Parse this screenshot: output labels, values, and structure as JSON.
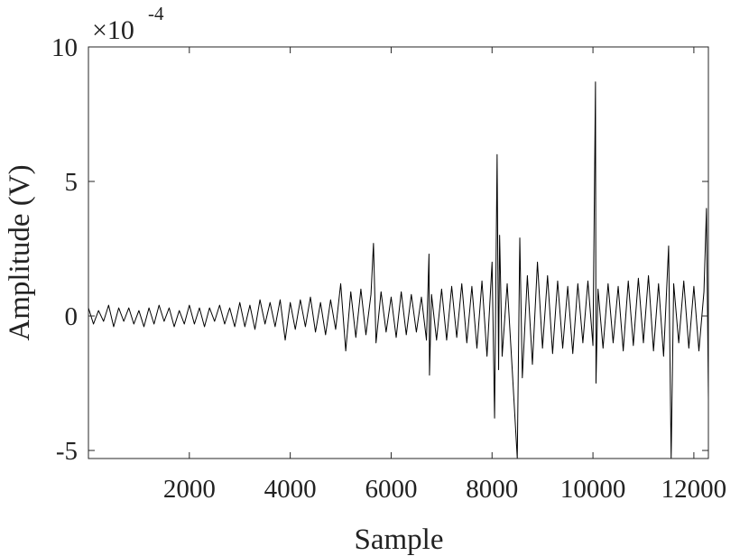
{
  "chart_data": {
    "type": "line",
    "xlabel": "Sample",
    "ylabel": "Amplitude (V)",
    "y_multiplier": "×10",
    "y_exponent": "-4",
    "color": "#000000",
    "xlim": [
      0,
      12288
    ],
    "xticks": [
      2000,
      4000,
      6000,
      8000,
      10000,
      12000
    ],
    "ylim": [
      -5.3,
      10
    ],
    "yticks": [
      -5,
      0,
      5,
      10
    ],
    "x": [
      0,
      100,
      200,
      300,
      400,
      500,
      600,
      700,
      800,
      900,
      1000,
      1100,
      1200,
      1300,
      1400,
      1500,
      1600,
      1700,
      1800,
      1900,
      2000,
      2100,
      2200,
      2300,
      2400,
      2500,
      2600,
      2700,
      2800,
      2900,
      3000,
      3100,
      3200,
      3300,
      3400,
      3500,
      3600,
      3700,
      3800,
      3900,
      4000,
      4100,
      4200,
      4300,
      4400,
      4500,
      4600,
      4700,
      4800,
      4900,
      5000,
      5100,
      5200,
      5300,
      5400,
      5500,
      5600,
      5650,
      5700,
      5800,
      5900,
      6000,
      6100,
      6200,
      6300,
      6400,
      6500,
      6600,
      6700,
      6750,
      6760,
      6800,
      6900,
      7000,
      7100,
      7200,
      7300,
      7400,
      7500,
      7600,
      7700,
      7800,
      7900,
      8000,
      8050,
      8100,
      8130,
      8150,
      8200,
      8300,
      8400,
      8500,
      8550,
      8600,
      8700,
      8800,
      8900,
      9000,
      9100,
      9200,
      9300,
      9400,
      9500,
      9600,
      9700,
      9800,
      9900,
      10000,
      10050,
      10060,
      10100,
      10200,
      10300,
      10400,
      10500,
      10600,
      10700,
      10800,
      10900,
      11000,
      11100,
      11200,
      11300,
      11400,
      11500,
      11550,
      11600,
      11700,
      11800,
      11900,
      12000,
      12100,
      12200,
      12250,
      12288
    ],
    "values": [
      0.3,
      -0.3,
      0.2,
      -0.2,
      0.4,
      -0.4,
      0.3,
      -0.2,
      0.3,
      -0.3,
      0.2,
      -0.4,
      0.3,
      -0.3,
      0.4,
      -0.2,
      0.3,
      -0.4,
      0.2,
      -0.3,
      0.4,
      -0.3,
      0.3,
      -0.4,
      0.3,
      -0.2,
      0.4,
      -0.3,
      0.3,
      -0.4,
      0.5,
      -0.4,
      0.4,
      -0.5,
      0.6,
      -0.3,
      0.5,
      -0.4,
      0.6,
      -0.9,
      0.5,
      -0.5,
      0.6,
      -0.4,
      0.7,
      -0.6,
      0.5,
      -0.7,
      0.6,
      -0.5,
      1.2,
      -1.3,
      0.9,
      -0.8,
      1.0,
      -0.7,
      0.8,
      2.7,
      -1.0,
      0.9,
      -0.6,
      0.7,
      -0.8,
      0.9,
      -0.7,
      0.8,
      -0.6,
      0.7,
      -0.9,
      2.3,
      -2.2,
      0.8,
      -0.9,
      1.0,
      -0.9,
      1.1,
      -0.8,
      1.2,
      -1.0,
      1.1,
      -1.2,
      1.3,
      -1.5,
      2.0,
      -3.8,
      6.0,
      -2.0,
      3.0,
      -1.5,
      1.2,
      -2.0,
      -5.3,
      2.9,
      -2.3,
      1.5,
      -1.8,
      2.0,
      -1.2,
      1.5,
      -1.4,
      1.3,
      -1.2,
      1.1,
      -1.4,
      1.2,
      -1.0,
      1.3,
      -1.1,
      8.7,
      -2.5,
      1.0,
      -1.2,
      1.2,
      -1.0,
      1.1,
      -1.3,
      1.3,
      -1.1,
      1.4,
      -1.0,
      1.5,
      -1.3,
      1.2,
      -1.5,
      2.6,
      -5.3,
      1.2,
      -1.0,
      1.3,
      -1.2,
      1.1,
      -1.3,
      0.9,
      4.0,
      -3.1
    ]
  }
}
